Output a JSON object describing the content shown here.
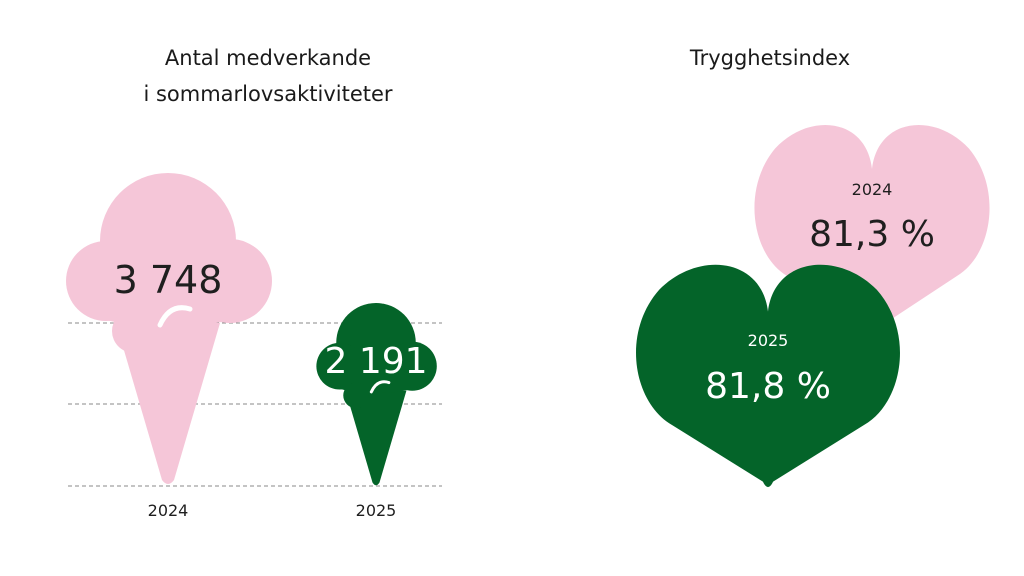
{
  "colors": {
    "pink": "#F5C6D8",
    "green": "#046429",
    "dark_text": "#1f1f1f",
    "white_text": "#ffffff",
    "gridline": "#888888"
  },
  "chart_data": [
    {
      "type": "bar",
      "title_lines": [
        "Antal medverkande",
        "i sommarlovsaktiviteter"
      ],
      "categories": [
        "2024",
        "2025"
      ],
      "values": [
        3748,
        2191
      ],
      "value_labels": [
        "3 748",
        "2 191"
      ],
      "ylim": [
        0,
        4000
      ],
      "grid": true,
      "mark_shape": "ice-cream-cone"
    },
    {
      "type": "pie",
      "title": "Trygghetsindex",
      "categories": [
        "2024",
        "2025"
      ],
      "values": [
        81.3,
        81.8
      ],
      "value_labels": [
        "81,3 %",
        "81,8 %"
      ],
      "mark_shape": "heart"
    }
  ]
}
